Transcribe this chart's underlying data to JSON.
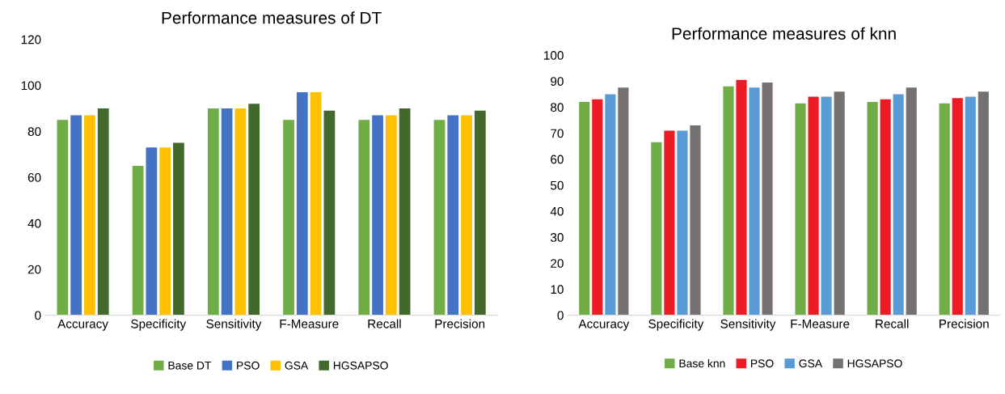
{
  "chart_data": [
    {
      "type": "bar",
      "title": "Performance measures of DT",
      "categories": [
        "Accuracy",
        "Specificity",
        "Sensitivity",
        "F-Measure",
        "Recall",
        "Precision"
      ],
      "ylim": [
        0,
        120
      ],
      "yticks": [
        0,
        20,
        40,
        60,
        80,
        100,
        120
      ],
      "grid": false,
      "legend": "bottom",
      "series": [
        {
          "name": "Base DT",
          "color": "#70ad47",
          "values": [
            85,
            65,
            90,
            85,
            85,
            85
          ]
        },
        {
          "name": "PSO",
          "color": "#4472c4",
          "values": [
            87,
            73,
            90,
            97,
            87,
            87
          ]
        },
        {
          "name": "GSA",
          "color": "#ffc000",
          "values": [
            87,
            73,
            90,
            97,
            87,
            87
          ]
        },
        {
          "name": "HGSAPSO",
          "color": "#43682b",
          "values": [
            90,
            75,
            92,
            89,
            90,
            89
          ]
        }
      ]
    },
    {
      "type": "bar",
      "title": "Performance measures of knn",
      "categories": [
        "Accuracy",
        "Specificity",
        "Sensitivity",
        "F-Measure",
        "Recall",
        "Precision"
      ],
      "ylim": [
        0,
        100
      ],
      "yticks": [
        0,
        10,
        20,
        30,
        40,
        50,
        60,
        70,
        80,
        90,
        100
      ],
      "grid": false,
      "legend": "bottom",
      "series": [
        {
          "name": "Base knn",
          "color": "#70ad47",
          "values": [
            82,
            66.5,
            88,
            81.5,
            82,
            81.5
          ]
        },
        {
          "name": "PSO",
          "color": "#ed1c24",
          "values": [
            83,
            71,
            90.5,
            84,
            83,
            83.5
          ]
        },
        {
          "name": "GSA",
          "color": "#5b9bd5",
          "values": [
            85,
            71,
            87.5,
            84,
            85,
            84
          ]
        },
        {
          "name": "HGSAPSO",
          "color": "#767171",
          "values": [
            87.5,
            73,
            89.5,
            86,
            87.5,
            86
          ]
        }
      ]
    }
  ]
}
